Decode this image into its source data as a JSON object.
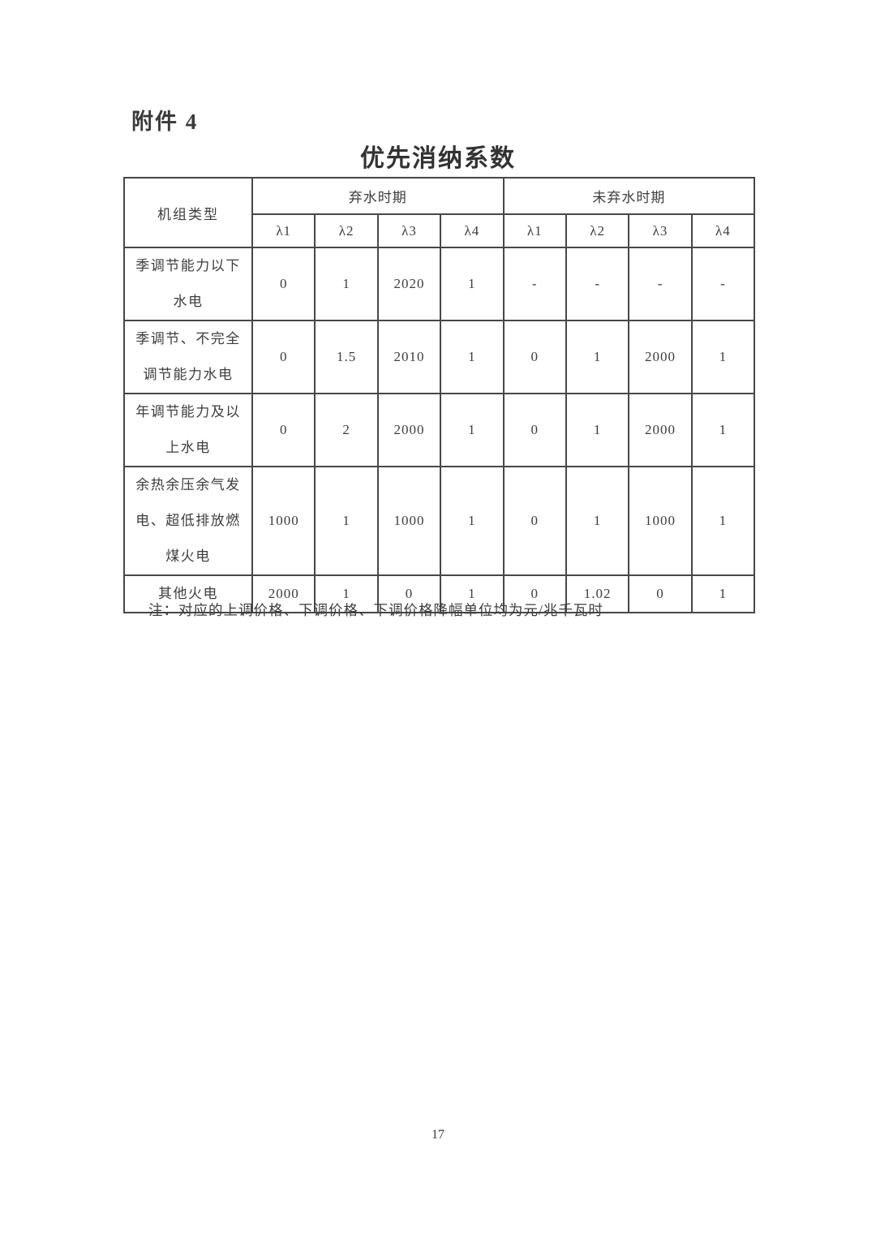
{
  "page": {
    "attachment_label": "附件 4",
    "title": "优先消纳系数",
    "note": "注：对应的上调价格、下调价格、下调价格降幅单位均为元/兆千瓦时",
    "page_number": "17"
  },
  "table": {
    "corner_header": "机组类型",
    "groups": [
      {
        "label": "弃水时期"
      },
      {
        "label": "未弃水时期"
      }
    ],
    "lambda_headers": [
      "λ1",
      "λ2",
      "λ3",
      "λ4",
      "λ1",
      "λ2",
      "λ3",
      "λ4"
    ],
    "rows": [
      {
        "label_lines": [
          "季调节能力以下",
          "水电"
        ],
        "values": [
          "0",
          "1",
          "2020",
          "1",
          "-",
          "-",
          "-",
          "-"
        ]
      },
      {
        "label_lines": [
          "季调节、不完全",
          "调节能力水电"
        ],
        "values": [
          "0",
          "1.5",
          "2010",
          "1",
          "0",
          "1",
          "2000",
          "1"
        ]
      },
      {
        "label_lines": [
          "年调节能力及以",
          "上水电"
        ],
        "values": [
          "0",
          "2",
          "2000",
          "1",
          "0",
          "1",
          "2000",
          "1"
        ]
      },
      {
        "label_lines": [
          "余热余压余气发",
          "电、超低排放燃",
          "煤火电"
        ],
        "values": [
          "1000",
          "1",
          "1000",
          "1",
          "0",
          "1",
          "1000",
          "1"
        ]
      },
      {
        "label_lines": [
          "其他火电"
        ],
        "values": [
          "2000",
          "1",
          "0",
          "1",
          "0",
          "1.02",
          "0",
          "1"
        ]
      }
    ]
  }
}
